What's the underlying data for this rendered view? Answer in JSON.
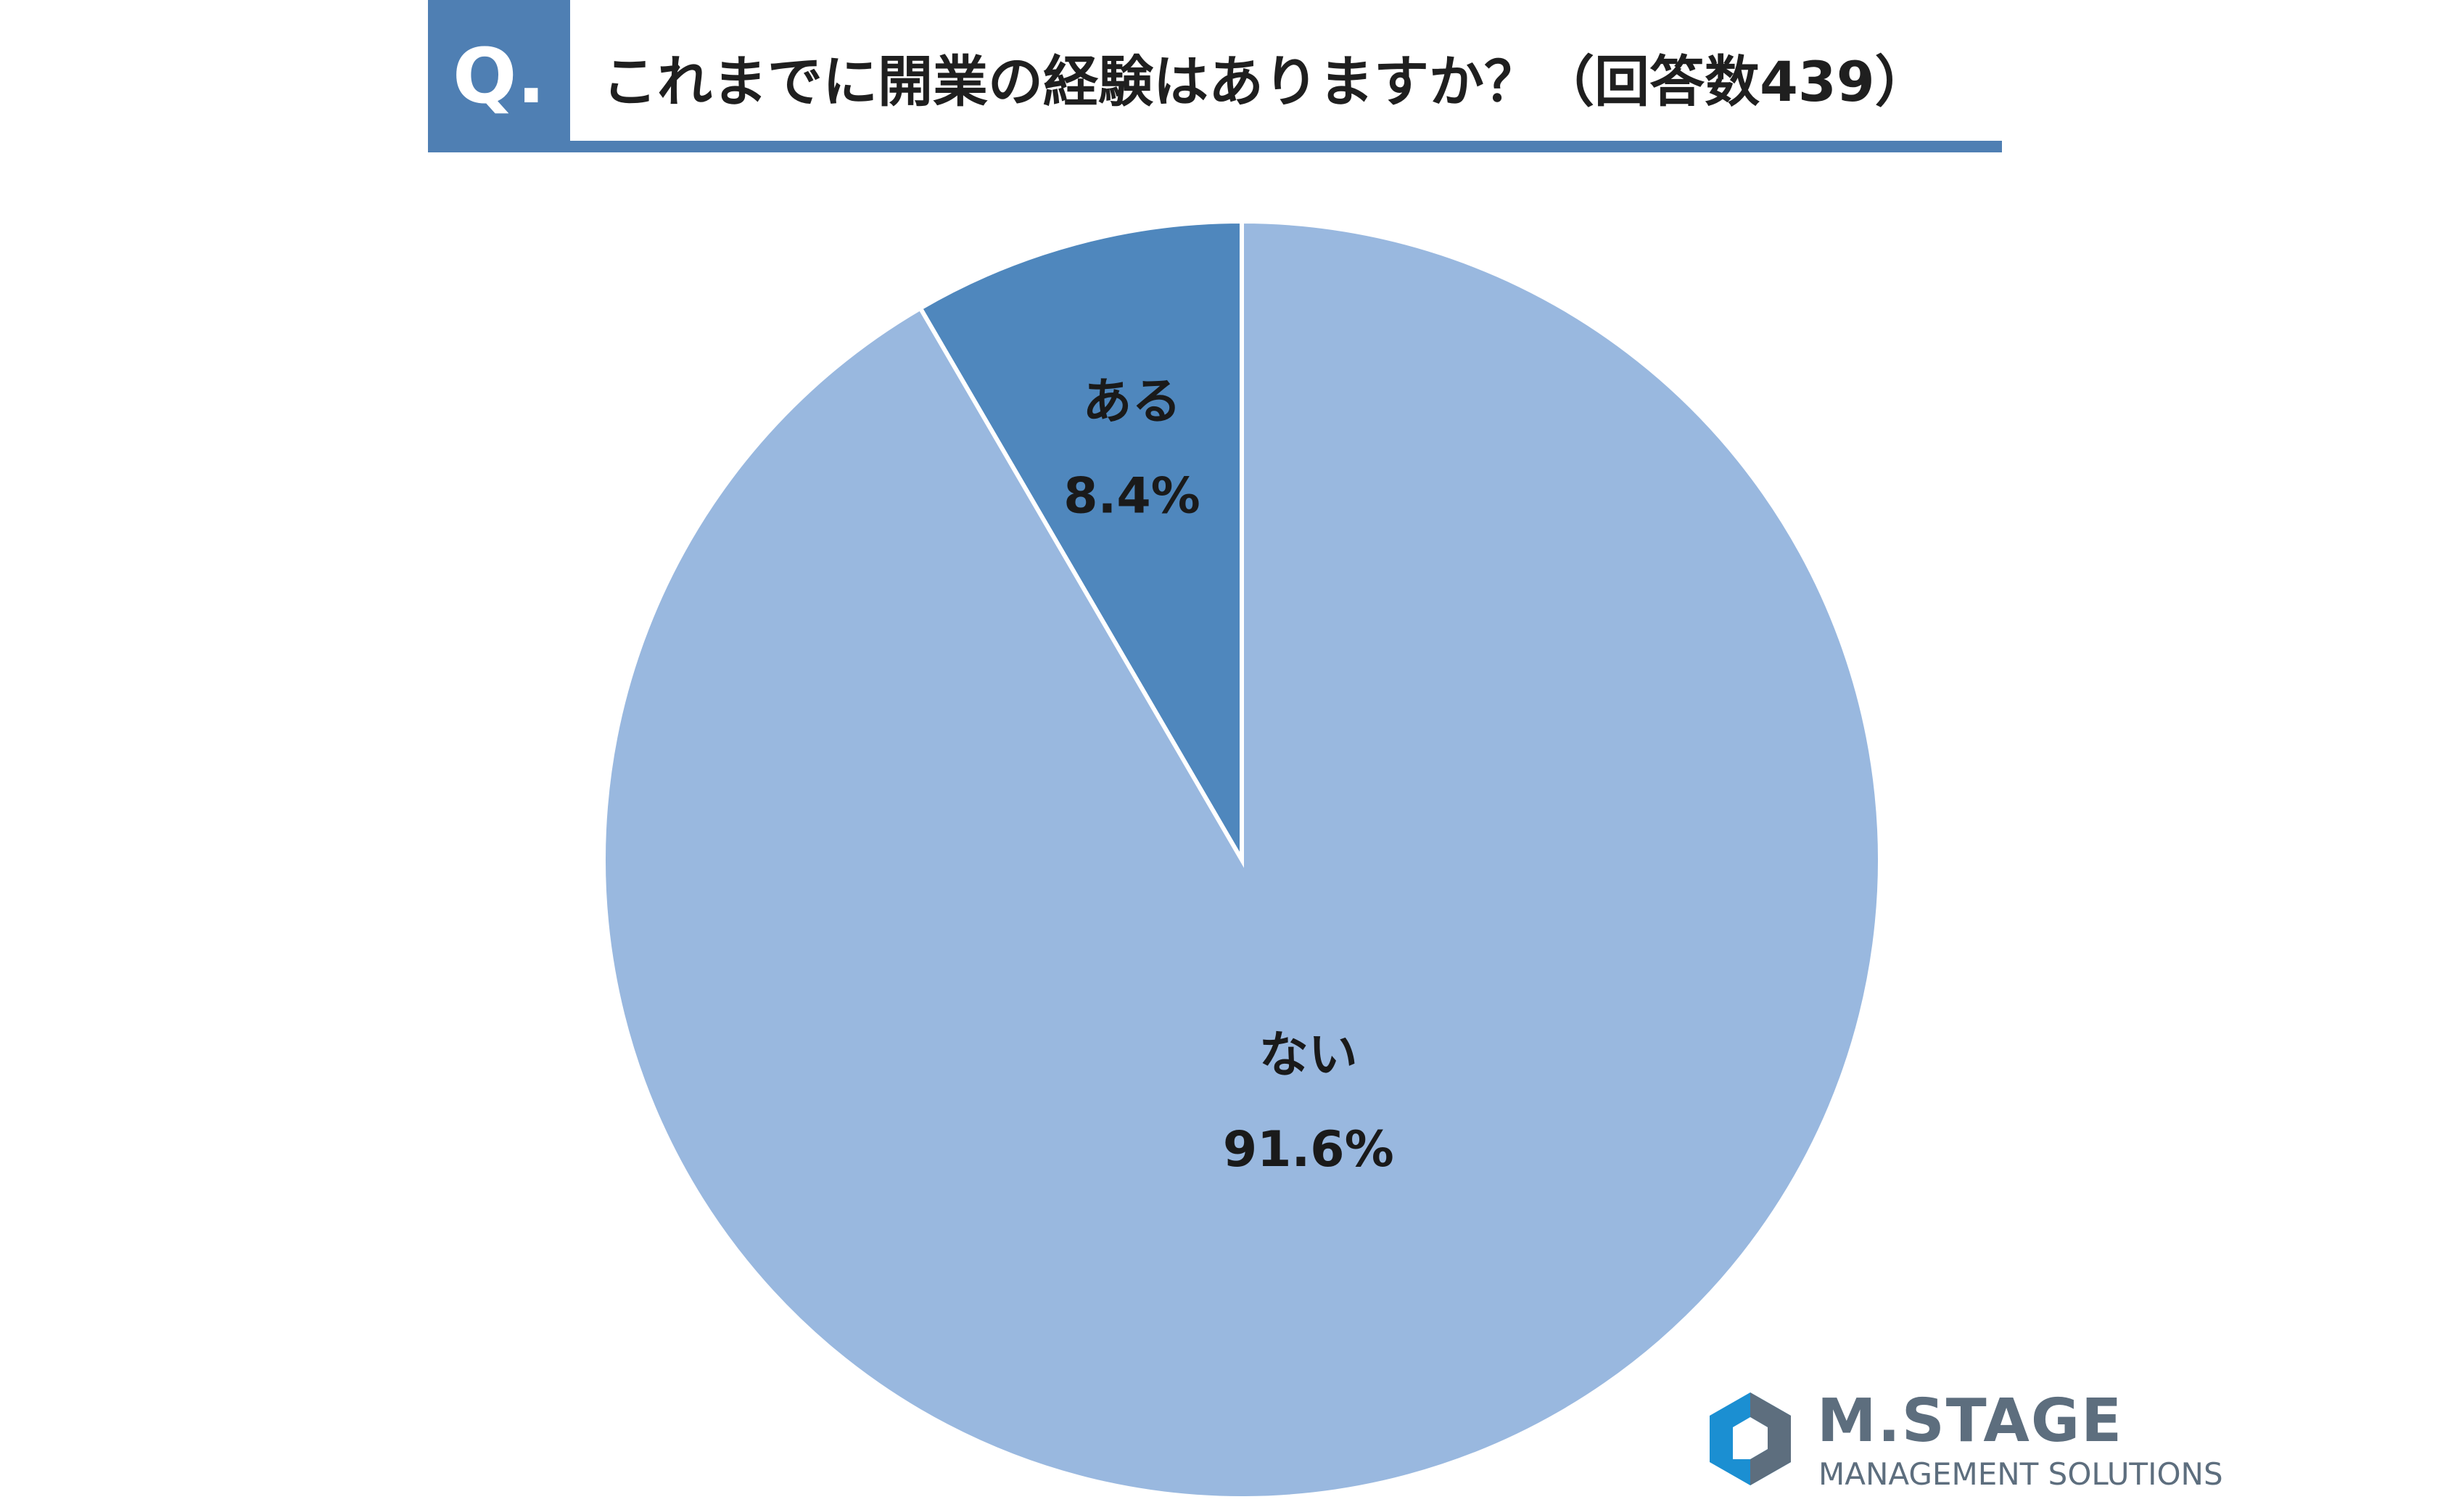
{
  "header": {
    "q_label": "Q.",
    "question": "これまでに開業の経験はありますか？（回答数439）"
  },
  "chart_data": {
    "type": "pie",
    "title": "これまでに開業の経験はありますか？（回答数439）",
    "slices": [
      {
        "label": "ある",
        "value": 8.4,
        "display": "8.4%",
        "color": "#4f87bd"
      },
      {
        "label": "ない",
        "value": 91.6,
        "display": "91.6%",
        "color": "#99b8df"
      }
    ],
    "start": "12 o'clock",
    "legend": "none"
  },
  "logo": {
    "name": "M.STAGE",
    "subtitle": "MANAGEMENT SOLUTIONS",
    "colors": {
      "blue": "#1b8fd2",
      "gray": "#5d6e7e"
    }
  }
}
